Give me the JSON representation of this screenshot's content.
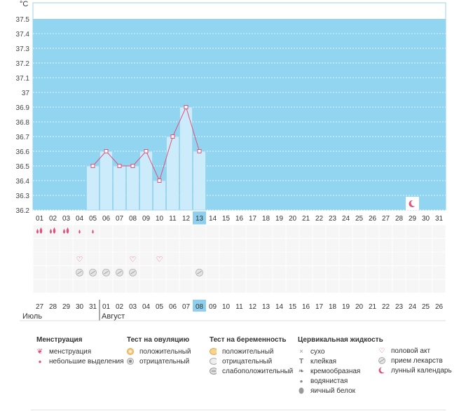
{
  "chart_data": {
    "type": "bar",
    "unit": "°C",
    "ylim": [
      36.2,
      37.6
    ],
    "yticks": [
      "37.5",
      "37.4",
      "37.3",
      "37.2",
      "37.1",
      "37",
      "36.9",
      "36.8",
      "36.7",
      "36.6",
      "36.5",
      "36.4",
      "36.3",
      "36.2"
    ],
    "ytick_values": [
      37.5,
      37.4,
      37.3,
      37.2,
      37.1,
      37.0,
      36.9,
      36.8,
      36.7,
      36.6,
      36.5,
      36.4,
      36.3,
      36.2
    ],
    "cycle_days": [
      "01",
      "02",
      "03",
      "04",
      "05",
      "06",
      "07",
      "08",
      "09",
      "10",
      "11",
      "12",
      "13",
      "14",
      "15",
      "16",
      "17",
      "18",
      "19",
      "20",
      "21",
      "22",
      "23",
      "24",
      "25",
      "26",
      "27",
      "28",
      "29",
      "30",
      "31"
    ],
    "current_day_index": 12,
    "temperature": [
      null,
      null,
      null,
      null,
      36.5,
      36.6,
      36.5,
      36.5,
      36.6,
      36.4,
      36.7,
      36.9,
      36.6,
      null,
      null,
      null,
      null,
      null,
      null,
      null,
      null,
      null,
      null,
      null,
      null,
      null,
      null,
      null,
      null,
      null,
      null
    ],
    "moon_day_index": 28,
    "menstruation": [
      "heavy",
      "heavy",
      "heavy",
      "light",
      "light",
      null,
      null,
      null,
      null,
      null,
      null,
      null,
      null,
      null,
      null,
      null,
      null,
      null,
      null,
      null,
      null,
      null,
      null,
      null,
      null,
      null,
      null,
      null,
      null,
      null,
      null
    ],
    "intercourse": [
      null,
      null,
      null,
      true,
      null,
      null,
      null,
      true,
      null,
      true,
      null,
      null,
      null,
      null,
      null,
      null,
      null,
      null,
      null,
      null,
      null,
      null,
      null,
      null,
      null,
      null,
      null,
      null,
      null,
      null,
      null
    ],
    "medication": [
      null,
      null,
      null,
      true,
      true,
      true,
      true,
      true,
      null,
      null,
      null,
      null,
      true,
      null,
      null,
      null,
      null,
      null,
      null,
      null,
      null,
      null,
      null,
      null,
      null,
      null,
      null,
      null,
      null,
      null,
      null
    ],
    "calendar_dates": [
      "27",
      "28",
      "29",
      "30",
      "31",
      "01",
      "02",
      "03",
      "04",
      "05",
      "06",
      "07",
      "08",
      "09",
      "10",
      "11",
      "12",
      "13",
      "14",
      "15",
      "16",
      "17",
      "18",
      "19",
      "20",
      "21",
      "22",
      "23",
      "24",
      "25",
      "26"
    ],
    "calendar_weekend": [
      true,
      true,
      false,
      false,
      false,
      false,
      false,
      true,
      true,
      false,
      false,
      false,
      false,
      true,
      true,
      true,
      false,
      false,
      false,
      false,
      false,
      true,
      true,
      false,
      false,
      false,
      false,
      false,
      true,
      true,
      false
    ],
    "month_labels": {
      "july": "Июль",
      "august": "Август"
    }
  },
  "legend": {
    "menstruation": {
      "title": "Менструация",
      "items": [
        "менструация",
        "небольшие выделения"
      ]
    },
    "ovulation": {
      "title": "Тест на овуляцию",
      "items": [
        "положительный",
        "отрицательный"
      ]
    },
    "pregnancy": {
      "title": "Тест на беременность",
      "items": [
        "положительный",
        "отрицательный",
        "слабоположительный"
      ]
    },
    "cervical": {
      "title": "Цервикальная жидкость",
      "items": [
        "сухо",
        "клейкая",
        "кремообразная",
        "водянистая",
        "яичный белок"
      ]
    },
    "other": {
      "items": [
        "половой акт",
        "прием лекарств",
        "лунный календарь"
      ]
    }
  },
  "colors": {
    "sky": "#92d5f0",
    "bar_fill": "#cdecfb",
    "bar_stroke": "#8ecfee",
    "line": "#e0507a",
    "weekend": "#e0204a",
    "today_bg": "#8ecfee",
    "grid_bg": "#f6f6f6"
  }
}
